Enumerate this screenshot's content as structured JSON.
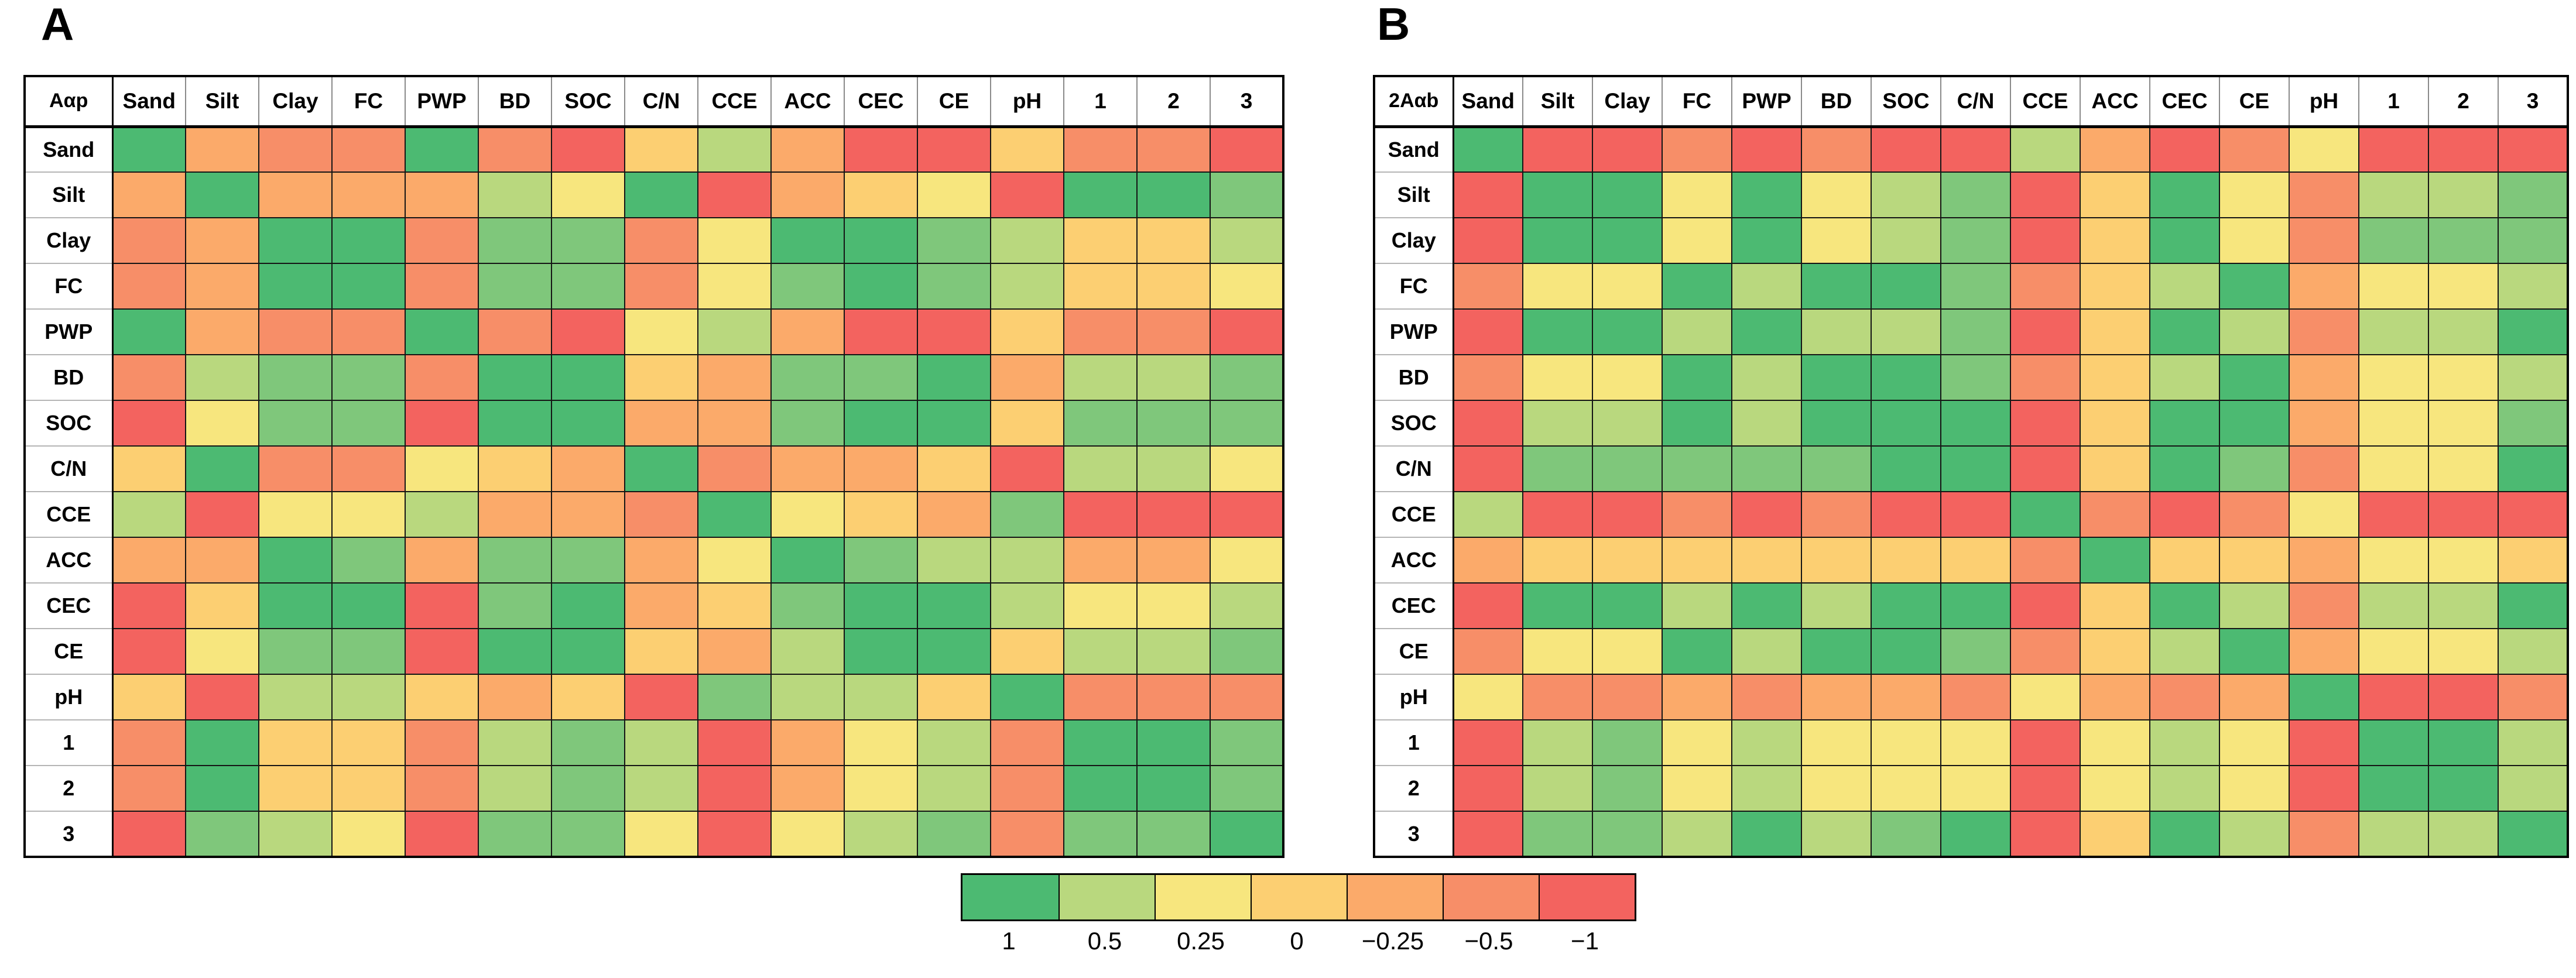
{
  "figure": {
    "panel_a_title": "A",
    "panel_b_title": "B"
  },
  "legend": {
    "entries": [
      {
        "label": "1",
        "color": "#4cba72"
      },
      {
        "label": "0.5",
        "color": "#b9d87e"
      },
      {
        "label": "0.25",
        "color": "#f7e67e"
      },
      {
        "label": "0",
        "color": "#fccf72"
      },
      {
        "label": "−0.25",
        "color": "#fbaa6a"
      },
      {
        "label": "−0.5",
        "color": "#f78e68"
      },
      {
        "label": "−1",
        "color": "#f3635f"
      }
    ]
  },
  "palette": {
    "G": "#4cba72",
    "g": "#7fc77b",
    "LG": "#b9d87e",
    "Y": "#f7e67e",
    "YO": "#fccf72",
    "O": "#fbaa6a",
    "DO": "#f78e68",
    "R": "#f3635f"
  },
  "code_values": {
    "G": 1,
    "g": 0.75,
    "LG": 0.5,
    "Y": 0.25,
    "YO": 0,
    "O": -0.25,
    "DO": -0.5,
    "R": -1
  },
  "chart_data": [
    {
      "type": "heatmap",
      "title": "A",
      "corner_label": "Aαp",
      "labels": [
        "Sand",
        "Silt",
        "Clay",
        "FC",
        "PWP",
        "BD",
        "SOC",
        "C/N",
        "CCE",
        "ACC",
        "CEC",
        "CE",
        "pH",
        "1",
        "2",
        "3"
      ],
      "legend_position": "bottom-center",
      "cells": [
        [
          "G",
          "O",
          "DO",
          "DO",
          "G",
          "DO",
          "R",
          "YO",
          "LG",
          "O",
          "R",
          "R",
          "YO",
          "DO",
          "DO",
          "R"
        ],
        [
          "O",
          "G",
          "O",
          "O",
          "O",
          "LG",
          "Y",
          "G",
          "R",
          "O",
          "YO",
          "Y",
          "R",
          "G",
          "G",
          "g"
        ],
        [
          "DO",
          "O",
          "G",
          "G",
          "DO",
          "g",
          "g",
          "DO",
          "Y",
          "G",
          "G",
          "g",
          "LG",
          "YO",
          "YO",
          "LG"
        ],
        [
          "DO",
          "O",
          "G",
          "G",
          "DO",
          "g",
          "g",
          "DO",
          "Y",
          "g",
          "G",
          "g",
          "LG",
          "YO",
          "YO",
          "Y"
        ],
        [
          "G",
          "O",
          "DO",
          "DO",
          "G",
          "DO",
          "R",
          "Y",
          "LG",
          "O",
          "R",
          "R",
          "YO",
          "DO",
          "DO",
          "R"
        ],
        [
          "DO",
          "LG",
          "g",
          "g",
          "DO",
          "G",
          "G",
          "YO",
          "O",
          "g",
          "g",
          "G",
          "O",
          "LG",
          "LG",
          "g"
        ],
        [
          "R",
          "Y",
          "g",
          "g",
          "R",
          "G",
          "G",
          "O",
          "O",
          "g",
          "G",
          "G",
          "YO",
          "g",
          "g",
          "g"
        ],
        [
          "YO",
          "G",
          "DO",
          "DO",
          "Y",
          "YO",
          "O",
          "G",
          "DO",
          "O",
          "O",
          "YO",
          "R",
          "LG",
          "LG",
          "Y"
        ],
        [
          "LG",
          "R",
          "Y",
          "Y",
          "LG",
          "O",
          "O",
          "DO",
          "G",
          "Y",
          "YO",
          "O",
          "g",
          "R",
          "R",
          "R"
        ],
        [
          "O",
          "O",
          "G",
          "g",
          "O",
          "g",
          "g",
          "O",
          "Y",
          "G",
          "g",
          "LG",
          "LG",
          "O",
          "O",
          "Y"
        ],
        [
          "R",
          "YO",
          "G",
          "G",
          "R",
          "g",
          "G",
          "O",
          "YO",
          "g",
          "G",
          "G",
          "LG",
          "Y",
          "Y",
          "LG"
        ],
        [
          "R",
          "Y",
          "g",
          "g",
          "R",
          "G",
          "G",
          "YO",
          "O",
          "LG",
          "G",
          "G",
          "YO",
          "LG",
          "LG",
          "g"
        ],
        [
          "YO",
          "R",
          "LG",
          "LG",
          "YO",
          "O",
          "YO",
          "R",
          "g",
          "LG",
          "LG",
          "YO",
          "G",
          "DO",
          "DO",
          "DO"
        ],
        [
          "DO",
          "G",
          "YO",
          "YO",
          "DO",
          "LG",
          "g",
          "LG",
          "R",
          "O",
          "Y",
          "LG",
          "DO",
          "G",
          "G",
          "g"
        ],
        [
          "DO",
          "G",
          "YO",
          "YO",
          "DO",
          "LG",
          "g",
          "LG",
          "R",
          "O",
          "Y",
          "LG",
          "DO",
          "G",
          "G",
          "g"
        ],
        [
          "R",
          "g",
          "LG",
          "Y",
          "R",
          "g",
          "g",
          "Y",
          "R",
          "Y",
          "LG",
          "g",
          "DO",
          "g",
          "g",
          "G"
        ]
      ]
    },
    {
      "type": "heatmap",
      "title": "B",
      "corner_label": "2Aαb",
      "labels": [
        "Sand",
        "Silt",
        "Clay",
        "FC",
        "PWP",
        "BD",
        "SOC",
        "C/N",
        "CCE",
        "ACC",
        "CEC",
        "CE",
        "pH",
        "1",
        "2",
        "3"
      ],
      "legend_position": "bottom-center",
      "cells": [
        [
          "G",
          "R",
          "R",
          "DO",
          "R",
          "DO",
          "R",
          "R",
          "LG",
          "O",
          "R",
          "DO",
          "Y",
          "R",
          "R",
          "R"
        ],
        [
          "R",
          "G",
          "G",
          "Y",
          "G",
          "Y",
          "LG",
          "g",
          "R",
          "YO",
          "G",
          "Y",
          "DO",
          "LG",
          "LG",
          "g"
        ],
        [
          "R",
          "G",
          "G",
          "Y",
          "G",
          "Y",
          "LG",
          "g",
          "R",
          "YO",
          "G",
          "Y",
          "DO",
          "g",
          "g",
          "g"
        ],
        [
          "DO",
          "Y",
          "Y",
          "G",
          "LG",
          "G",
          "G",
          "g",
          "DO",
          "YO",
          "LG",
          "G",
          "O",
          "Y",
          "Y",
          "LG"
        ],
        [
          "R",
          "G",
          "G",
          "LG",
          "G",
          "LG",
          "LG",
          "g",
          "R",
          "YO",
          "G",
          "LG",
          "DO",
          "LG",
          "LG",
          "G"
        ],
        [
          "DO",
          "Y",
          "Y",
          "G",
          "LG",
          "G",
          "G",
          "g",
          "DO",
          "YO",
          "LG",
          "G",
          "O",
          "Y",
          "Y",
          "LG"
        ],
        [
          "R",
          "LG",
          "LG",
          "G",
          "LG",
          "G",
          "G",
          "G",
          "R",
          "YO",
          "G",
          "G",
          "O",
          "Y",
          "Y",
          "g"
        ],
        [
          "R",
          "g",
          "g",
          "g",
          "g",
          "g",
          "G",
          "G",
          "R",
          "YO",
          "G",
          "g",
          "DO",
          "Y",
          "Y",
          "G"
        ],
        [
          "LG",
          "R",
          "R",
          "DO",
          "R",
          "DO",
          "R",
          "R",
          "G",
          "DO",
          "R",
          "DO",
          "Y",
          "R",
          "R",
          "R"
        ],
        [
          "O",
          "YO",
          "YO",
          "YO",
          "YO",
          "YO",
          "YO",
          "YO",
          "DO",
          "G",
          "YO",
          "YO",
          "O",
          "Y",
          "Y",
          "YO"
        ],
        [
          "R",
          "G",
          "G",
          "LG",
          "G",
          "LG",
          "G",
          "G",
          "R",
          "YO",
          "G",
          "LG",
          "DO",
          "LG",
          "LG",
          "G"
        ],
        [
          "DO",
          "Y",
          "Y",
          "G",
          "LG",
          "G",
          "G",
          "g",
          "DO",
          "YO",
          "LG",
          "G",
          "O",
          "Y",
          "Y",
          "LG"
        ],
        [
          "Y",
          "DO",
          "DO",
          "O",
          "DO",
          "O",
          "O",
          "DO",
          "Y",
          "O",
          "DO",
          "O",
          "G",
          "R",
          "R",
          "DO"
        ],
        [
          "R",
          "LG",
          "g",
          "Y",
          "LG",
          "Y",
          "Y",
          "Y",
          "R",
          "Y",
          "LG",
          "Y",
          "R",
          "G",
          "G",
          "LG"
        ],
        [
          "R",
          "LG",
          "g",
          "Y",
          "LG",
          "Y",
          "Y",
          "Y",
          "R",
          "Y",
          "LG",
          "Y",
          "R",
          "G",
          "G",
          "LG"
        ],
        [
          "R",
          "g",
          "g",
          "LG",
          "G",
          "LG",
          "g",
          "G",
          "R",
          "YO",
          "G",
          "LG",
          "DO",
          "LG",
          "LG",
          "G"
        ]
      ]
    }
  ]
}
